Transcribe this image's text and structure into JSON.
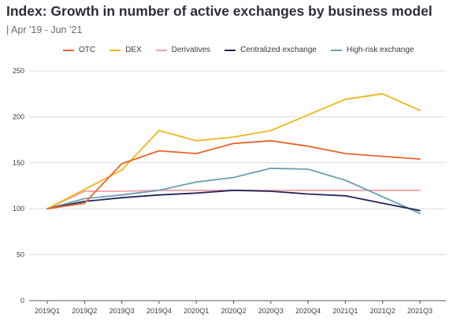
{
  "title": "Index: Growth in number of active exchanges by business model",
  "subtitle": "| Apr '19 - Jun '21",
  "chart_data": {
    "type": "line",
    "title": "Index: Growth in number of active exchanges by business model",
    "subtitle": "| Apr '19 - Jun '21",
    "xlabel": "",
    "ylabel": "",
    "ylim": [
      0,
      250
    ],
    "yticks": [
      0,
      50,
      100,
      150,
      200,
      250
    ],
    "grid": "horizontal",
    "legend_position": "top",
    "categories": [
      "2019Q1",
      "2019Q2",
      "2019Q3",
      "2019Q4",
      "2020Q1",
      "2020Q2",
      "2020Q3",
      "2020Q4",
      "2021Q1",
      "2021Q2",
      "2021Q3"
    ],
    "series": [
      {
        "name": "OTC",
        "color": "#e8642a",
        "values": [
          100,
          106,
          149,
          163,
          160,
          171,
          174,
          168,
          160,
          157,
          154
        ]
      },
      {
        "name": "DEX",
        "color": "#f4b41a",
        "values": [
          100,
          121,
          142,
          185,
          174,
          178,
          185,
          202,
          219,
          225,
          207
        ]
      },
      {
        "name": "Derivatives",
        "color": "#f0a0a8",
        "values": [
          100,
          119,
          119,
          120,
          120,
          120,
          120,
          120,
          120,
          120,
          120
        ]
      },
      {
        "name": "Centralized exchange",
        "color": "#24275a",
        "values": [
          100,
          108,
          112,
          115,
          117,
          120,
          119,
          116,
          114,
          106,
          98
        ]
      },
      {
        "name": "High-risk exchange",
        "color": "#6a9fb0",
        "values": [
          100,
          111,
          115,
          120,
          129,
          134,
          144,
          143,
          131,
          113,
          95
        ]
      }
    ]
  }
}
